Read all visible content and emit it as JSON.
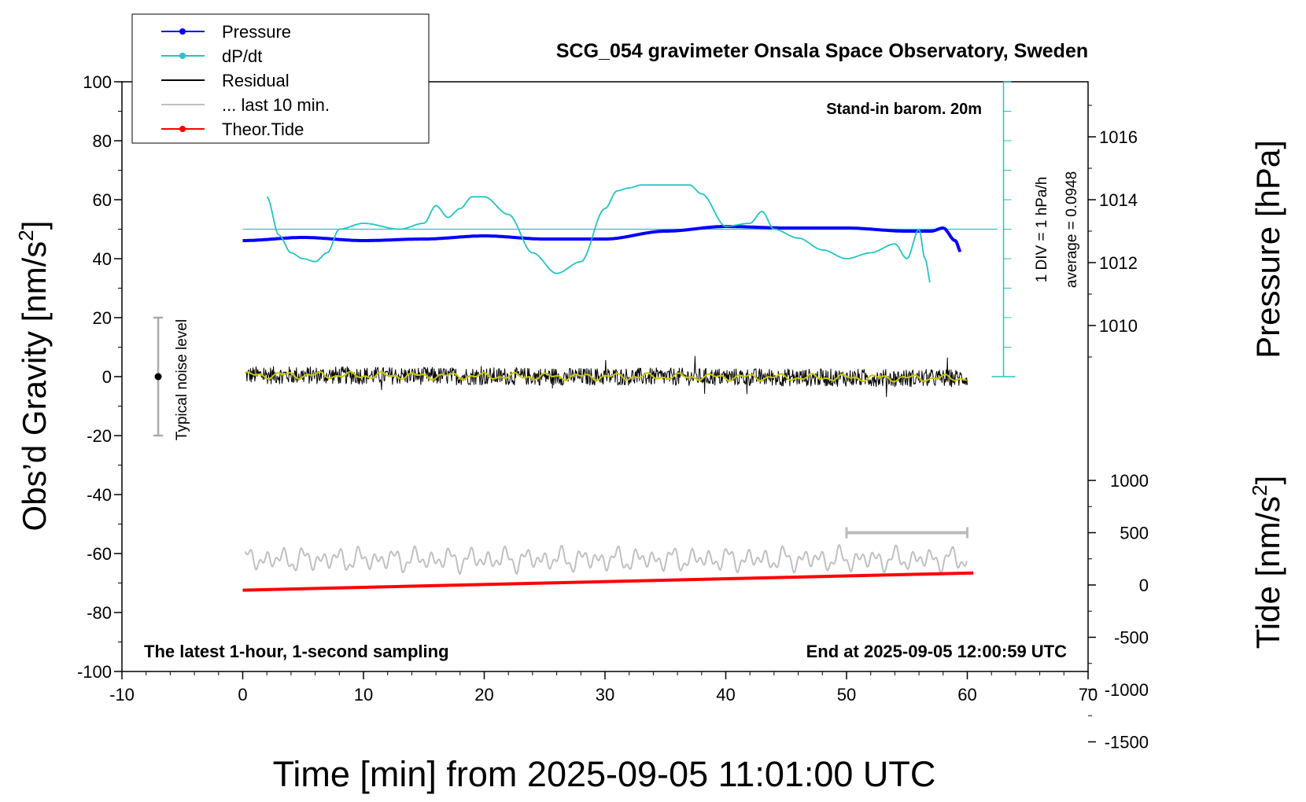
{
  "title": "SCG_054 gravimeter Onsala Space Observatory, Sweden",
  "annotations": {
    "standin": "Stand-in barom. 20m",
    "latest": "The latest 1-hour, 1-second sampling",
    "end_at": "End at 2025-09-05 12:00:59 UTC",
    "noise": "Typical noise level",
    "div": "1 DIV = 1 hPa/h",
    "average": "average = 0.0948"
  },
  "axes": {
    "xlabel": "Time [min] from 2025-09-05 11:01:00 UTC",
    "ylabel_left": "Obs’d Gravity [nm/s",
    "ylabel_left_sup": "2",
    "ylabel_left_end": "]",
    "ylabel_right_top": "Pressure [hPa]",
    "ylabel_right_bottom": "Tide [nm/s",
    "ylabel_right_bottom_sup": "2",
    "ylabel_right_bottom_end": "]"
  },
  "legend": [
    {
      "label": "Pressure",
      "color": "#0000ff",
      "marker": true
    },
    {
      "label": "dP/dt",
      "color": "#22c4c4",
      "marker": true
    },
    {
      "label": "Residual",
      "color": "#000000",
      "marker": false
    },
    {
      "label": "... last 10 min.",
      "color": "#c0c0c0",
      "marker": false
    },
    {
      "label": "Theor.Tide",
      "color": "#ff0000",
      "marker": true
    }
  ],
  "chart_data": {
    "type": "line",
    "x_range": [
      -10,
      70
    ],
    "x_ticks": [
      "-10",
      "0",
      "10",
      "20",
      "30",
      "40",
      "50",
      "60",
      "70"
    ],
    "y_left_range": [
      -100,
      100
    ],
    "y_left_ticks": [
      "100",
      "80",
      "60",
      "40",
      "20",
      "0",
      "-20",
      "-40",
      "-60",
      "-80",
      "-100"
    ],
    "y_right_pressure_ticks": [
      "1016",
      "1014",
      "1012",
      "1010"
    ],
    "y_right_tide_ticks": [
      "1000",
      "500",
      "0",
      "-500",
      "-1000",
      "-1500"
    ],
    "tide_range": [
      -1500,
      1000
    ],
    "series": [
      {
        "name": "Pressure",
        "color": "#0000ff",
        "unit": "hPa",
        "x": [
          0,
          5,
          10,
          15,
          20,
          25,
          30,
          35,
          40,
          45,
          50,
          55,
          57,
          58,
          59,
          59.5
        ],
        "y": [
          1012.7,
          1012.8,
          1012.7,
          1012.75,
          1012.85,
          1012.75,
          1012.75,
          1013.0,
          1013.15,
          1013.1,
          1013.1,
          1013.0,
          1013.0,
          1013.1,
          1012.7,
          1012.3
        ]
      },
      {
        "name": "dP/dt",
        "color": "#22c4c4",
        "unit": "hPa/h (1 DIV = 1 hPa/h, baseline 50 nm/s2)",
        "x": [
          2,
          3,
          4,
          5,
          6,
          7,
          8,
          10,
          13,
          15,
          16,
          17,
          18,
          19,
          20,
          22,
          24,
          26,
          28,
          30,
          31,
          32,
          33,
          34,
          35,
          36,
          37,
          38,
          40,
          42,
          43,
          44,
          46,
          48,
          50,
          52,
          54,
          55,
          56,
          56.5,
          57
        ],
        "y": [
          61,
          48,
          42,
          40,
          39,
          42,
          50,
          52,
          50,
          52,
          58,
          54,
          57,
          61,
          61,
          55,
          42,
          35,
          39,
          57,
          63,
          64,
          65,
          65,
          65,
          65,
          65,
          62,
          51,
          52,
          56,
          50,
          47,
          43,
          40,
          42,
          45,
          40,
          50,
          40,
          31
        ]
      },
      {
        "name": "Residual",
        "color": "#000000",
        "unit": "nm/s2",
        "note": "1-second noise about 0, range about -8 to +8",
        "x": [
          0,
          30,
          60
        ],
        "y": [
          0.5,
          0,
          -0.5
        ]
      },
      {
        "name": "Residual smoothed",
        "color": "#c8c800",
        "unit": "nm/s2",
        "x": [
          0,
          30,
          60
        ],
        "y": [
          0.5,
          0,
          -0.5
        ]
      },
      {
        "name": "... last 10 min.",
        "color": "#c0c0c0",
        "unit": "nm/s2",
        "note": "oscillating about -62, amplitude about 4",
        "x": [
          0,
          60
        ],
        "y": [
          -62,
          -62
        ]
      },
      {
        "name": "Theor.Tide",
        "color": "#ff0000",
        "unit": "nm/s2",
        "x": [
          0,
          60.5
        ],
        "y": [
          -50,
          115
        ]
      }
    ],
    "noise_bar": {
      "x": -7,
      "ymin": -20,
      "ymax": 20,
      "center": 0
    },
    "scale_bar": {
      "x0": 50,
      "x1": 60,
      "tide": 500
    }
  }
}
